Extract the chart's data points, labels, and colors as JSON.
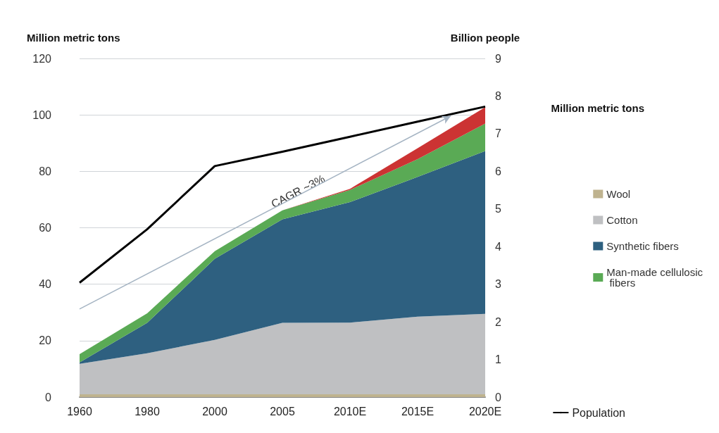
{
  "chart_data": {
    "type": "area",
    "stacked": true,
    "ylabel": "Million metric tons",
    "y2label": "Billion people",
    "legend_title": "Million metric tons",
    "categories": [
      "1960",
      "1980",
      "2000",
      "2005",
      "2010E",
      "2015E",
      "2020E"
    ],
    "series": [
      {
        "name": "Wool",
        "color": "#bfb38f",
        "values": [
          1,
          1,
          1,
          1,
          1,
          1,
          1
        ]
      },
      {
        "name": "Cotton",
        "color": "#bfc0c2",
        "values": [
          10.8,
          14.5,
          19.3,
          25.3,
          25.4,
          27.5,
          28.5
        ]
      },
      {
        "name": "Synthetic fibers",
        "color": "#2e6080",
        "values": [
          0.5,
          10.8,
          28.7,
          36.7,
          42.7,
          49.5,
          57.7
        ]
      },
      {
        "name": "Man-made cellulosic fibers",
        "color": "#5aaa55",
        "values": [
          2.9,
          3.4,
          2.7,
          3.2,
          4.3,
          6.3,
          9.7
        ]
      },
      {
        "color": "#cc3333",
        "values": [
          0,
          0,
          0,
          0,
          0.4,
          3.9,
          5.8
        ]
      },
      {
        "name": "Population",
        "type": "line",
        "axis": "y2",
        "color": "#000000",
        "values": [
          3.04,
          4.46,
          6.14,
          6.52,
          6.92,
          7.32,
          7.72
        ]
      }
    ],
    "annotations": [
      "CAGR ~3%"
    ],
    "ylim": [
      0,
      120
    ],
    "yticks": [
      0,
      20,
      40,
      60,
      80,
      100,
      120
    ],
    "y2lim": [
      0,
      9
    ],
    "y2ticks": [
      0,
      1,
      2,
      3,
      4,
      5,
      6,
      7,
      8,
      9
    ],
    "grid": "y",
    "legend": "right",
    "marker": "none"
  }
}
